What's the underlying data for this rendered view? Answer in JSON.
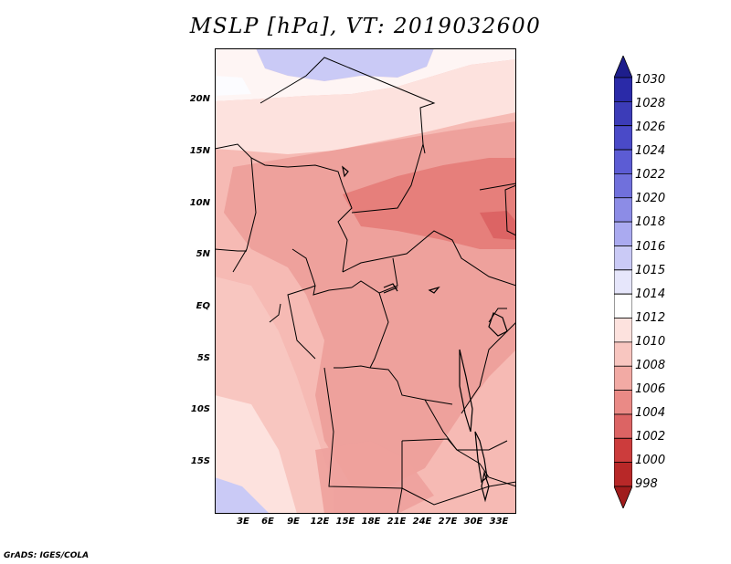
{
  "title": "MSLP [hPa], VT: 2019032600",
  "footer": "GrADS: IGES/COLA",
  "map": {
    "lat_labels": [
      "20N",
      "15N",
      "10N",
      "5N",
      "EQ",
      "5S",
      "10S",
      "15S"
    ],
    "lon_labels": [
      "3E",
      "6E",
      "9E",
      "12E",
      "15E",
      "18E",
      "21E",
      "24E",
      "27E",
      "30E",
      "33E"
    ]
  },
  "colorbar": {
    "levels": [
      "1030",
      "1028",
      "1026",
      "1024",
      "1022",
      "1020",
      "1018",
      "1016",
      "1015",
      "1014",
      "1012",
      "1010",
      "1008",
      "1006",
      "1004",
      "1002",
      "1000",
      "998"
    ],
    "colors": [
      "#1e1e8c",
      "#2a2aa8",
      "#3c3cb8",
      "#4a4ac8",
      "#5c5cd4",
      "#7070dc",
      "#8c8ce6",
      "#aaaaf0",
      "#cacaf6",
      "#e6e6fb",
      "#ffffff",
      "#fde2de",
      "#f8c6c0",
      "#f2aaa4",
      "#ea8a86",
      "#dc6464",
      "#cc3c3c",
      "#b82828",
      "#a01c1c"
    ]
  }
}
